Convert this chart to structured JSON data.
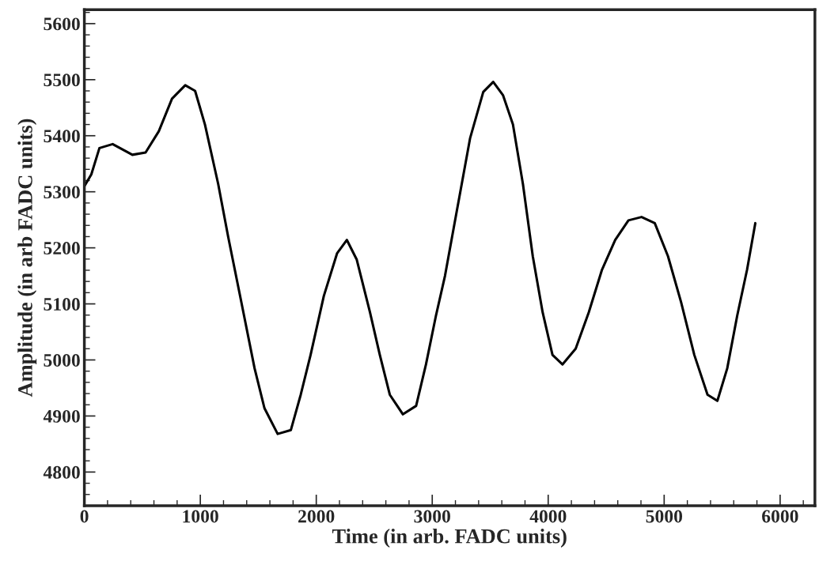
{
  "chart_data": {
    "type": "line",
    "xlabel": "Time (in arb. FADC units)",
    "ylabel": "Amplitude (in arb FADC units)",
    "xlim": [
      0,
      6300
    ],
    "xticks": [
      0,
      1000,
      2000,
      3000,
      4000,
      5000,
      6000
    ],
    "ylim": [
      4740,
      5625
    ],
    "yticks": [
      4800,
      4900,
      5000,
      5100,
      5200,
      5300,
      5400,
      5500,
      5600
    ],
    "grid": false,
    "legend": false,
    "marker": "none",
    "line_style": "solid",
    "series": [
      {
        "color": "#000000",
        "x": [
          0,
          60,
          130,
          244,
          414,
          528,
          642,
          756,
          870,
          955,
          1040,
          1154,
          1240,
          1354,
          1468,
          1553,
          1667,
          1781,
          1866,
          1951,
          2065,
          2179,
          2264,
          2349,
          2463,
          2548,
          2634,
          2747,
          2861,
          2946,
          3032,
          3110,
          3213,
          3327,
          3440,
          3526,
          3611,
          3696,
          3782,
          3867,
          3952,
          4037,
          4123,
          4237,
          4350,
          4464,
          4578,
          4692,
          4805,
          4919,
          5033,
          5146,
          5260,
          5374,
          5459,
          5544,
          5630,
          5715,
          5786
        ],
        "values": [
          5310,
          5331,
          5378,
          5385,
          5366,
          5370,
          5408,
          5466,
          5490,
          5480,
          5420,
          5314,
          5220,
          5103,
          4985,
          4914,
          4868,
          4875,
          4938,
          5009,
          5114,
          5190,
          5214,
          5179,
          5085,
          5009,
          4938,
          4903,
          4918,
          4992,
          5079,
          5150,
          5267,
          5396,
          5478,
          5496,
          5472,
          5420,
          5314,
          5185,
          5085,
          5009,
          4992,
          5020,
          5085,
          5161,
          5214,
          5249,
          5255,
          5244,
          5185,
          5103,
          5009,
          4938,
          4927,
          4985,
          5079,
          5161,
          5244
        ]
      }
    ]
  }
}
